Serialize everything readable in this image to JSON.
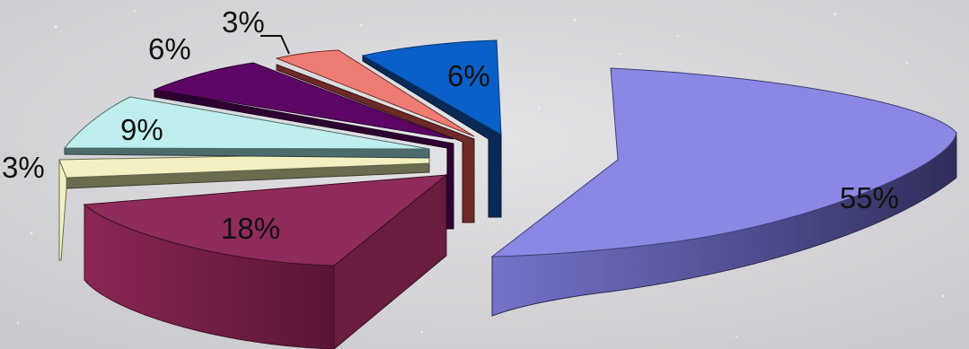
{
  "chart_data": {
    "type": "pie",
    "title": "",
    "exploded": true,
    "style": "3d",
    "slices": [
      {
        "label": "55%",
        "value": 55,
        "color": "#8a88e4"
      },
      {
        "label": "18%",
        "value": 18,
        "color": "#8f2b5a"
      },
      {
        "label": "3%",
        "value": 3,
        "color": "#f3f1c2"
      },
      {
        "label": "9%",
        "value": 9,
        "color": "#bfeeee"
      },
      {
        "label": "6%",
        "value": 6,
        "color": "#5d0565"
      },
      {
        "label": "3%",
        "value": 3,
        "color": "#ee7c73"
      },
      {
        "label": "6%",
        "value": 6,
        "color": "#0a60c8"
      }
    ]
  }
}
